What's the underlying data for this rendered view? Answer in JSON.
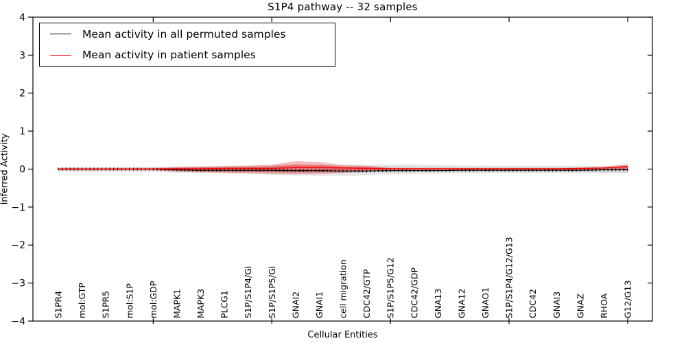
{
  "title": "S1P4 pathway -- 32 samples",
  "legend": {
    "entries": [
      {
        "label": "Mean activity in all permuted samples",
        "color": "#000000"
      },
      {
        "label": "Mean activity in patient samples",
        "color": "#ff0000"
      }
    ]
  },
  "colors": {
    "permuted_line": "#000000",
    "patient_line": "#ff0000",
    "permuted_band": "#aaaaaa",
    "patient_band": "#dd2222",
    "axis": "#000000"
  },
  "chart_data": {
    "type": "line",
    "title": "S1P4 pathway -- 32 samples",
    "xlabel": "Cellular Entities",
    "ylabel": "Inferred Activity",
    "ylim": [
      -4,
      4
    ],
    "yticks": [
      -4,
      -3,
      -2,
      -1,
      0,
      1,
      2,
      3,
      4
    ],
    "ytick_labels": [
      "−4",
      "−3",
      "−2",
      "−1",
      "0",
      "1",
      "2",
      "3",
      "4"
    ],
    "grid": false,
    "legend_position": "upper left",
    "categories": [
      "S1PR4",
      "mol:GTP",
      "S1PR5",
      "mol:S1P",
      "mol:GDP",
      "MAPK1",
      "MAPK3",
      "PLCG1",
      "S1P/S1P4/Gi",
      "S1P/S1P5/Gi",
      "GNAI2",
      "GNAI1",
      "cell migration",
      "CDC42/GTP",
      "S1P/S1P5/G12",
      "CDC42/GDP",
      "GNA13",
      "GNA12",
      "GNAO1",
      "S1P/S1P4/G12/G13",
      "CDC42",
      "GNAI3",
      "GNAZ",
      "RHOA",
      "G12/G13"
    ],
    "major_xtick_category_indices": [
      4,
      9,
      14,
      19,
      24
    ],
    "series": [
      {
        "name": "Mean activity in all permuted samples",
        "kind": "line",
        "color": "#000000",
        "values": [
          0,
          0,
          0,
          0,
          0,
          -0.02,
          -0.03,
          -0.03,
          -0.03,
          -0.03,
          -0.04,
          -0.04,
          -0.05,
          -0.05,
          -0.04,
          -0.04,
          -0.04,
          -0.03,
          -0.03,
          -0.03,
          -0.03,
          -0.03,
          -0.03,
          -0.02,
          -0.02
        ]
      },
      {
        "name": "Mean activity in patient samples",
        "kind": "line",
        "color": "#ff0000",
        "values": [
          0,
          0,
          0,
          0,
          0,
          0.01,
          0.01,
          0.02,
          0.02,
          0.02,
          0.04,
          0.04,
          0.03,
          0.02,
          0.01,
          0.01,
          0.01,
          0.01,
          0.01,
          0.01,
          0.01,
          0.01,
          0.02,
          0.03,
          0.07
        ]
      },
      {
        "name": "Permuted samples range",
        "kind": "band",
        "color": "#aaaaaa",
        "upper": [
          0.05,
          0.05,
          0.05,
          0.05,
          0.05,
          0.06,
          0.07,
          0.08,
          0.09,
          0.1,
          0.1,
          0.11,
          0.11,
          0.11,
          0.11,
          0.12,
          0.1,
          0.09,
          0.08,
          0.08,
          0.08,
          0.08,
          0.08,
          0.08,
          0.08
        ],
        "lower": [
          -0.06,
          -0.07,
          -0.07,
          -0.07,
          -0.07,
          -0.09,
          -0.1,
          -0.11,
          -0.12,
          -0.14,
          -0.16,
          -0.17,
          -0.18,
          -0.15,
          -0.13,
          -0.12,
          -0.11,
          -0.1,
          -0.1,
          -0.1,
          -0.1,
          -0.1,
          -0.1,
          -0.1,
          -0.1
        ]
      },
      {
        "name": "Patient samples range",
        "kind": "band",
        "color": "#dd2222",
        "upper": [
          0.02,
          0.02,
          0.02,
          0.02,
          0.02,
          0.05,
          0.06,
          0.07,
          0.08,
          0.11,
          0.2,
          0.18,
          0.1,
          0.08,
          0.03,
          0.02,
          0.02,
          0.02,
          0.02,
          0.02,
          0.02,
          0.02,
          0.03,
          0.05,
          0.13
        ],
        "lower": [
          -0.02,
          -0.02,
          -0.02,
          -0.02,
          -0.02,
          -0.06,
          -0.08,
          -0.09,
          -0.1,
          -0.12,
          -0.13,
          -0.12,
          -0.09,
          -0.06,
          -0.02,
          -0.02,
          -0.02,
          -0.02,
          -0.02,
          -0.02,
          -0.02,
          -0.02,
          -0.02,
          -0.02,
          -0.03
        ]
      }
    ]
  }
}
